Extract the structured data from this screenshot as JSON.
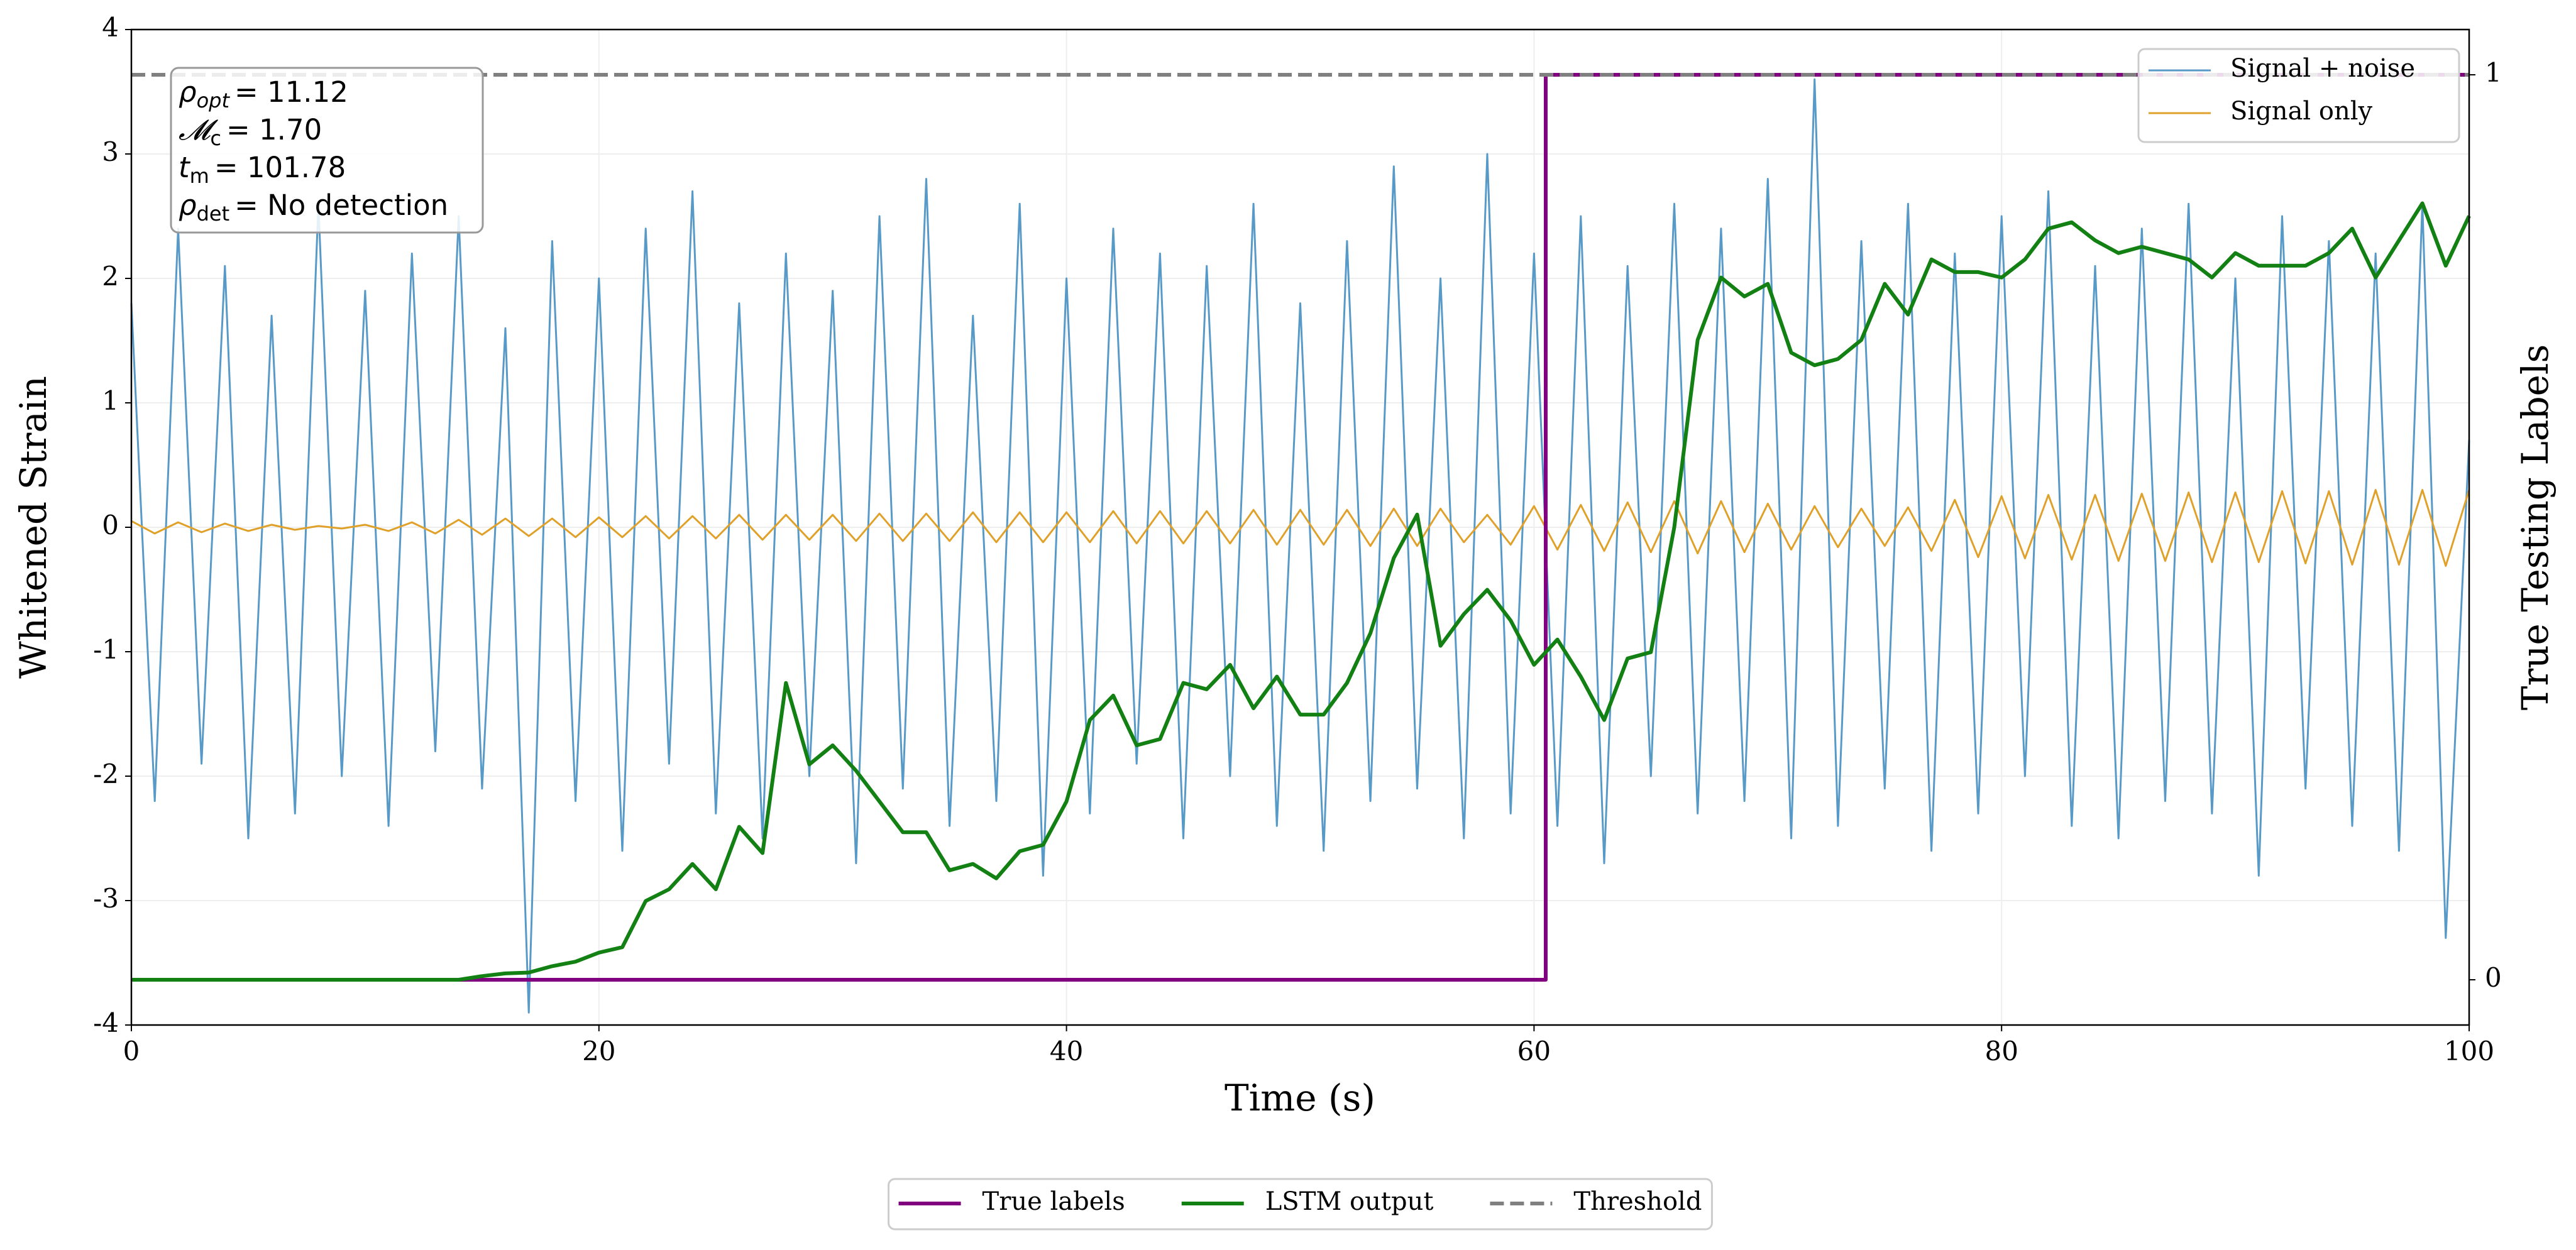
{
  "chart_data": {
    "type": "line",
    "xlabel": "Time (s)",
    "ylabel": "Whitened Strain",
    "y2label": "True Testing Labels",
    "xlim": [
      0,
      100
    ],
    "xticks": [
      0,
      20,
      40,
      60,
      80,
      100
    ],
    "ylim": [
      -4,
      4
    ],
    "yticks": [
      -4,
      -3,
      -2,
      -1,
      0,
      1,
      2,
      3,
      4
    ],
    "y2lim": [
      -0.05,
      1.05
    ],
    "y2ticks": [
      0,
      1
    ],
    "grid": true,
    "x": [
      0,
      1,
      2,
      3,
      4,
      5,
      6,
      7,
      8,
      9,
      10,
      11,
      12,
      13,
      14,
      15,
      16,
      17,
      18,
      19,
      20,
      21,
      22,
      23,
      24,
      25,
      26,
      27,
      28,
      29,
      30,
      31,
      32,
      33,
      34,
      35,
      36,
      37,
      38,
      39,
      40,
      41,
      42,
      43,
      44,
      45,
      46,
      47,
      48,
      49,
      50,
      51,
      52,
      53,
      54,
      55,
      56,
      57,
      58,
      59,
      60,
      61,
      62,
      63,
      64,
      65,
      66,
      67,
      68,
      69,
      70,
      71,
      72,
      73,
      74,
      75,
      76,
      77,
      78,
      79,
      80,
      81,
      82,
      83,
      84,
      85,
      86,
      87,
      88,
      89,
      90,
      91,
      92,
      93,
      94,
      95,
      96,
      97,
      98,
      99,
      100
    ],
    "series": [
      {
        "name": "Signal + noise",
        "color": "#5799c7",
        "legend": "upper right",
        "values": [
          1.8,
          -2.2,
          2.4,
          -1.9,
          2.1,
          -2.5,
          1.7,
          -2.3,
          2.6,
          -2.0,
          1.9,
          -2.4,
          2.2,
          -1.8,
          2.5,
          -2.1,
          1.6,
          -3.9,
          2.3,
          -2.2,
          2.0,
          -2.6,
          2.4,
          -1.9,
          2.7,
          -2.3,
          1.8,
          -2.5,
          2.2,
          -2.0,
          1.9,
          -2.7,
          2.5,
          -2.1,
          2.8,
          -2.4,
          1.7,
          -2.2,
          2.6,
          -2.8,
          2.0,
          -2.3,
          2.4,
          -1.9,
          2.2,
          -2.5,
          2.1,
          -2.0,
          2.6,
          -2.4,
          1.8,
          -2.6,
          2.3,
          -2.2,
          2.9,
          -2.1,
          2.0,
          -2.5,
          3.0,
          -2.3,
          2.2,
          -2.4,
          2.5,
          -2.7,
          2.1,
          -2.0,
          2.6,
          -2.3,
          2.4,
          -2.2,
          2.8,
          -2.5,
          3.6,
          -2.4,
          2.3,
          -2.1,
          2.6,
          -2.6,
          2.2,
          -2.3,
          2.5,
          -2.0,
          2.7,
          -2.4,
          2.1,
          -2.5,
          2.4,
          -2.2,
          2.6,
          -2.3,
          2.0,
          -2.8,
          2.5,
          -2.1,
          2.3,
          -2.4,
          2.2,
          -2.6,
          2.6,
          -3.3,
          0.7
        ]
      },
      {
        "name": "Signal only",
        "color": "#e0a12a",
        "legend": "upper right",
        "values": [
          0.05,
          -0.05,
          0.04,
          -0.04,
          0.03,
          -0.03,
          0.02,
          -0.02,
          0.01,
          -0.01,
          0.02,
          -0.03,
          0.04,
          -0.05,
          0.06,
          -0.06,
          0.07,
          -0.07,
          0.07,
          -0.08,
          0.08,
          -0.08,
          0.09,
          -0.09,
          0.09,
          -0.09,
          0.1,
          -0.1,
          0.1,
          -0.1,
          0.1,
          -0.11,
          0.11,
          -0.11,
          0.11,
          -0.11,
          0.12,
          -0.12,
          0.12,
          -0.12,
          0.12,
          -0.12,
          0.13,
          -0.13,
          0.13,
          -0.13,
          0.13,
          -0.13,
          0.14,
          -0.14,
          0.14,
          -0.14,
          0.14,
          -0.15,
          0.15,
          -0.15,
          0.15,
          -0.12,
          0.1,
          -0.14,
          0.17,
          -0.18,
          0.18,
          -0.19,
          0.2,
          -0.2,
          0.21,
          -0.21,
          0.21,
          -0.2,
          0.19,
          -0.18,
          0.17,
          -0.16,
          0.15,
          -0.15,
          0.16,
          -0.19,
          0.22,
          -0.24,
          0.25,
          -0.25,
          0.26,
          -0.26,
          0.26,
          -0.27,
          0.27,
          -0.27,
          0.28,
          -0.28,
          0.28,
          -0.28,
          0.29,
          -0.29,
          0.29,
          -0.3,
          0.3,
          -0.3,
          0.3,
          -0.31,
          0.3
        ]
      },
      {
        "name": "True labels",
        "color": "#800080",
        "legend": "lower center",
        "axis": "y2",
        "x": [
          0,
          60.5,
          60.5,
          100
        ],
        "values": [
          0,
          0,
          1,
          1
        ]
      },
      {
        "name": "LSTM output",
        "color": "#128012",
        "legend": "lower center",
        "axis": "y2",
        "values": [
          0,
          0,
          0,
          0,
          0,
          0,
          0,
          0,
          0,
          0,
          0,
          0,
          0,
          0,
          0,
          0.004,
          0.007,
          0.008,
          0.015,
          0.02,
          0.03,
          0.036,
          0.087,
          0.1,
          0.128,
          0.1,
          0.169,
          0.14,
          0.328,
          0.238,
          0.259,
          0.231,
          0.197,
          0.163,
          0.163,
          0.121,
          0.128,
          0.112,
          0.142,
          0.149,
          0.197,
          0.287,
          0.314,
          0.259,
          0.266,
          0.328,
          0.321,
          0.348,
          0.3,
          0.335,
          0.293,
          0.293,
          0.328,
          0.383,
          0.466,
          0.514,
          0.369,
          0.404,
          0.431,
          0.397,
          0.348,
          0.376,
          0.335,
          0.287,
          0.355,
          0.362,
          0.5,
          0.707,
          0.776,
          0.755,
          0.769,
          0.693,
          0.679,
          0.686,
          0.707,
          0.769,
          0.735,
          0.796,
          0.782,
          0.782,
          0.776,
          0.796,
          0.83,
          0.837,
          0.817,
          0.803,
          0.81,
          0.803,
          0.796,
          0.776,
          0.803,
          0.789,
          0.789,
          0.789,
          0.803,
          0.83,
          0.776,
          0.817,
          0.858,
          0.789,
          0.844
        ]
      },
      {
        "name": "Threshold",
        "color": "#808080",
        "legend": "lower center",
        "axis": "y2",
        "dashed": true,
        "x": [
          0,
          100
        ],
        "values": [
          1,
          1
        ]
      }
    ],
    "annotations": [
      {
        "symbol": "ρ",
        "sub": "opt",
        "text": "= 11.12"
      },
      {
        "symbol": "𝓜",
        "sub": "c",
        "text": "= 1.70"
      },
      {
        "symbol": "t",
        "sub": "m",
        "text": "= 101.78"
      },
      {
        "symbol": "ρ",
        "sub": "det",
        "text": "= No detection"
      }
    ]
  }
}
